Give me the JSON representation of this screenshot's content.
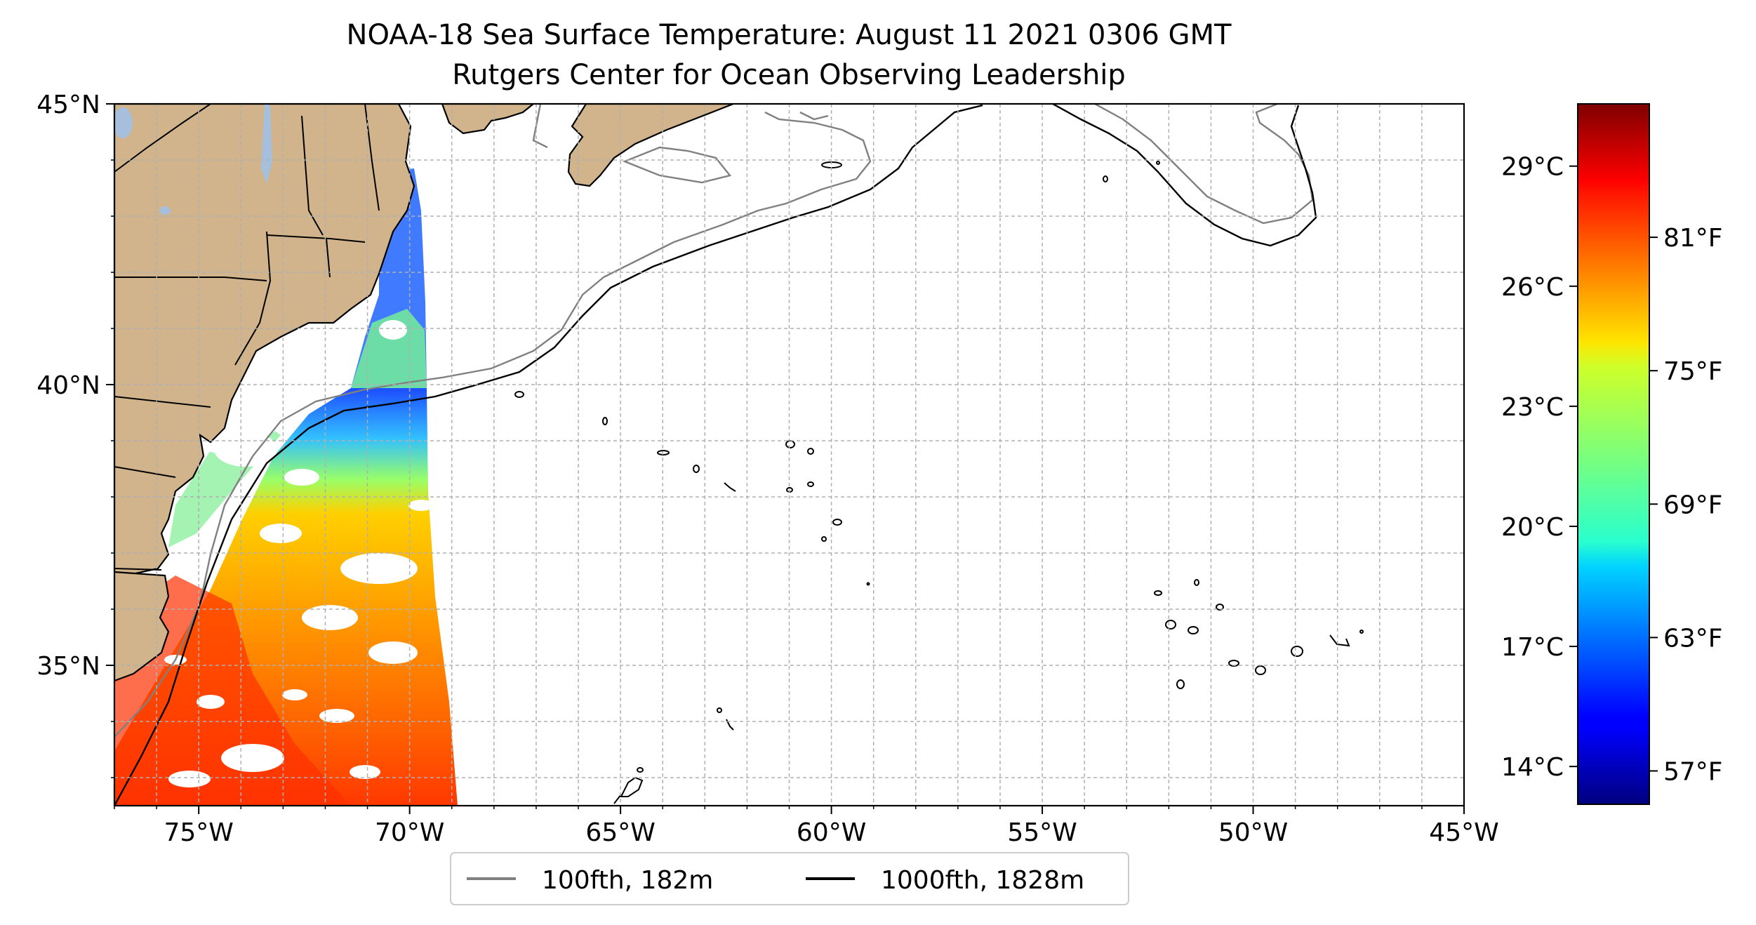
{
  "title": {
    "line1": "NOAA-18 Sea Surface Temperature: August 11 2021 0306 GMT",
    "line2": "Rutgers Center for Ocean Observing Leadership"
  },
  "map": {
    "lat_range": [
      32.5,
      45
    ],
    "lon_range": [
      -77,
      -45
    ],
    "lat_ticks": [
      {
        "value": 45,
        "label": "45°N"
      },
      {
        "value": 40,
        "label": "40°N"
      },
      {
        "value": 35,
        "label": "35°N"
      }
    ],
    "lon_ticks": [
      {
        "value": -75,
        "label": "75°W"
      },
      {
        "value": -70,
        "label": "70°W"
      },
      {
        "value": -65,
        "label": "65°W"
      },
      {
        "value": -60,
        "label": "60°W"
      },
      {
        "value": -55,
        "label": "55°W"
      },
      {
        "value": -50,
        "label": "50°W"
      },
      {
        "value": -45,
        "label": "45°W"
      }
    ],
    "gridlines": "dashed, every 1°",
    "land_color": "#d2b48c",
    "lake_color": "#a5bfdd"
  },
  "colorbar": {
    "colormap": "jet",
    "range_f": [
      55.5,
      87
    ],
    "celsius_ticks": [
      {
        "f": 57.2,
        "label": "14°C"
      },
      {
        "f": 62.6,
        "label": "17°C"
      },
      {
        "f": 68.0,
        "label": "20°C"
      },
      {
        "f": 73.4,
        "label": "23°C"
      },
      {
        "f": 78.8,
        "label": "26°C"
      },
      {
        "f": 84.2,
        "label": "29°C"
      }
    ],
    "fahrenheit_ticks": [
      {
        "f": 57,
        "label": "57°F"
      },
      {
        "f": 63,
        "label": "63°F"
      },
      {
        "f": 69,
        "label": "69°F"
      },
      {
        "f": 75,
        "label": "75°F"
      },
      {
        "f": 81,
        "label": "81°F"
      }
    ]
  },
  "legend": {
    "items": [
      {
        "label": "100fth, 182m",
        "color": "#808080"
      },
      {
        "label": "1000fth, 1828m",
        "color": "#000000"
      }
    ]
  }
}
